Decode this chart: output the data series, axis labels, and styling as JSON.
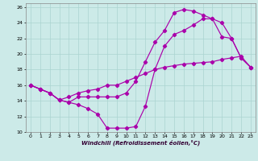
{
  "xlabel": "Windchill (Refroidissement éolien,°C)",
  "bg_color": "#cceae8",
  "line_color": "#aa00aa",
  "grid_color": "#aad4d0",
  "xlim": [
    -0.5,
    23.5
  ],
  "ylim": [
    10,
    26.5
  ],
  "xticks": [
    0,
    1,
    2,
    3,
    4,
    5,
    6,
    7,
    8,
    9,
    10,
    11,
    12,
    13,
    14,
    15,
    16,
    17,
    18,
    19,
    20,
    21,
    22,
    23
  ],
  "yticks": [
    10,
    12,
    14,
    16,
    18,
    20,
    22,
    24,
    26
  ],
  "curve1_x": [
    0,
    1,
    2,
    3,
    4,
    5,
    6,
    7,
    8,
    9,
    10,
    11,
    12,
    13,
    14,
    15,
    16,
    17,
    18,
    19,
    20,
    21,
    22,
    23
  ],
  "curve1_y": [
    16,
    15.5,
    15,
    14.1,
    13.8,
    14.5,
    14.5,
    14.5,
    14.5,
    14.5,
    15.0,
    16.5,
    19.0,
    21.5,
    23.0,
    25.3,
    25.7,
    25.5,
    25.0,
    24.5,
    22.2,
    22.0,
    19.5,
    18.3
  ],
  "curve2_x": [
    0,
    1,
    2,
    3,
    4,
    5,
    6,
    7,
    8,
    9,
    10,
    11,
    12,
    13,
    14,
    15,
    16,
    17,
    18,
    19,
    20,
    21,
    22,
    23
  ],
  "curve2_y": [
    16,
    15.5,
    15,
    14.1,
    13.8,
    13.5,
    13.0,
    12.3,
    10.5,
    10.5,
    10.5,
    10.7,
    13.3,
    18.0,
    21.0,
    22.5,
    23.0,
    23.7,
    24.5,
    24.5,
    24.0,
    22.0,
    19.5,
    18.3
  ],
  "curve3_x": [
    0,
    1,
    2,
    3,
    4,
    5,
    6,
    7,
    8,
    9,
    10,
    11,
    12,
    13,
    14,
    15,
    16,
    17,
    18,
    19,
    20,
    21,
    22,
    23
  ],
  "curve3_y": [
    16,
    15.5,
    15,
    14.1,
    14.5,
    15.0,
    15.3,
    15.5,
    16.0,
    16.0,
    16.5,
    17.0,
    17.5,
    18.0,
    18.3,
    18.5,
    18.7,
    18.8,
    18.9,
    19.0,
    19.3,
    19.5,
    19.7,
    18.3
  ]
}
